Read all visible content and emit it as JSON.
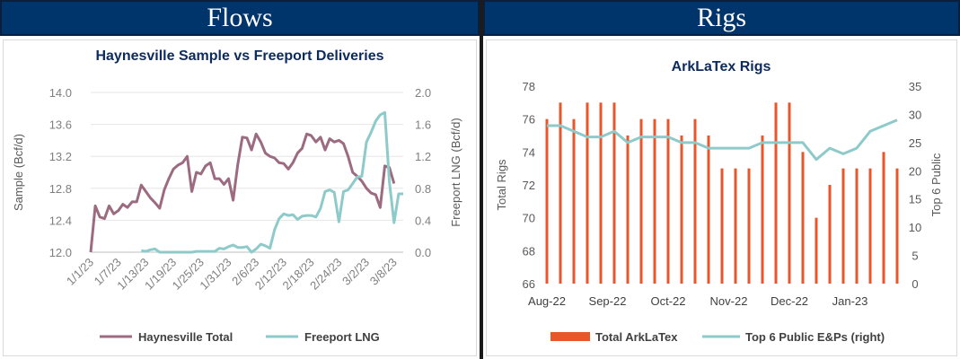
{
  "panels": {
    "left": {
      "header": "Flows"
    },
    "right": {
      "header": "Rigs"
    }
  },
  "colors": {
    "header_bg": "#00356b",
    "haynesville": "#9c6b80",
    "freeport": "#8fcaca",
    "rig_bars": "#e8562a",
    "public_line": "#8fcaca",
    "axis_text": "#7f7f7f",
    "title_text": "#0d2a5c"
  },
  "chart_data": [
    {
      "type": "line",
      "title": "Haynesville Sample vs Freeport Deliveries",
      "ylabel": "Sample (Bcf/d)",
      "y2label": "Freeport LNG (Bcf/d)",
      "ylim": [
        12.0,
        14.0
      ],
      "y2lim": [
        0.0,
        2.0
      ],
      "yticks": [
        "12.0",
        "12.4",
        "12.8",
        "13.2",
        "13.6",
        "14.0"
      ],
      "y2ticks": [
        "0.0",
        "0.4",
        "0.8",
        "1.2",
        "1.6",
        "2.0"
      ],
      "x_tick_labels": [
        "1/1/23",
        "1/7/23",
        "1/13/23",
        "1/19/23",
        "1/25/23",
        "1/31/23",
        "2/6/23",
        "2/12/23",
        "2/18/23",
        "2/24/23",
        "3/2/23",
        "3/8/23"
      ],
      "x_days": [
        1,
        2,
        3,
        4,
        5,
        6,
        7,
        8,
        9,
        10,
        11,
        12,
        13,
        14,
        15,
        16,
        17,
        18,
        19,
        20,
        21,
        22,
        23,
        24,
        25,
        26,
        27,
        28,
        29,
        30,
        31,
        32,
        33,
        34,
        35,
        36,
        37,
        38,
        39,
        40,
        41,
        42,
        43,
        44,
        45,
        46,
        47,
        48,
        49,
        50,
        51,
        52,
        53,
        54,
        55,
        56,
        57,
        58,
        59,
        60,
        61,
        62,
        63,
        64,
        65,
        66,
        67,
        68,
        69
      ],
      "series": [
        {
          "name": "Haynesville Total",
          "axis": "left",
          "values": [
            12.0,
            12.58,
            12.44,
            12.42,
            12.58,
            12.48,
            12.52,
            12.6,
            12.56,
            12.63,
            12.63,
            12.84,
            12.76,
            12.68,
            12.62,
            12.55,
            12.78,
            12.92,
            13.04,
            13.09,
            13.12,
            13.2,
            12.76,
            13.0,
            12.98,
            13.08,
            13.12,
            12.92,
            12.92,
            12.85,
            12.92,
            12.65,
            13.1,
            13.44,
            13.43,
            13.28,
            13.48,
            13.38,
            13.24,
            13.2,
            13.18,
            13.12,
            13.11,
            13.04,
            13.12,
            13.24,
            13.3,
            13.48,
            13.46,
            13.38,
            13.44,
            13.28,
            13.42,
            13.38,
            13.4,
            13.36,
            13.2,
            13.0,
            12.95,
            12.89,
            12.8,
            12.74,
            12.72,
            12.56,
            13.08,
            13.06,
            12.86
          ],
          "x_start_index": 0
        },
        {
          "name": "Freeport LNG",
          "axis": "right",
          "values": [
            0.02,
            0.01,
            0.03,
            0.04,
            0.0,
            0.0,
            0.0,
            0.0,
            0.0,
            0.0,
            0.0,
            0.0,
            0.01,
            0.01,
            0.01,
            0.01,
            0.01,
            0.05,
            0.04,
            0.07,
            0.09,
            0.06,
            0.06,
            0.07,
            0.0,
            0.04,
            0.1,
            0.08,
            0.05,
            0.28,
            0.42,
            0.48,
            0.46,
            0.47,
            0.41,
            0.45,
            0.46,
            0.46,
            0.44,
            0.55,
            0.76,
            0.78,
            0.75,
            0.38,
            0.76,
            0.78,
            0.86,
            0.94,
            0.95,
            1.38,
            1.5,
            1.64,
            1.72,
            1.75,
            0.88,
            0.37,
            0.73,
            0.73
          ],
          "x_start_index": 11
        }
      ]
    },
    {
      "type": "bar+line",
      "title": "ArkLaTex Rigs",
      "ylabel": "Total Rigs",
      "y2label": "Top 6 Public",
      "ylim": [
        66,
        78
      ],
      "y2lim": [
        0,
        35
      ],
      "yticks": [
        "66",
        "68",
        "70",
        "72",
        "74",
        "76",
        "78"
      ],
      "y2ticks": [
        "0",
        "5",
        "10",
        "15",
        "20",
        "25",
        "30",
        "35"
      ],
      "x_tick_labels": [
        "Aug-22",
        "Sep-22",
        "Oct-22",
        "Nov-22",
        "Dec-22",
        "Jan-23"
      ],
      "series": [
        {
          "name": "Total ArkLaTex",
          "type": "bar",
          "axis": "left",
          "values": [
            76,
            77,
            76,
            77,
            77,
            77,
            75,
            76,
            76,
            76,
            75,
            76,
            75,
            73,
            73,
            73,
            75,
            77,
            77,
            74,
            70,
            72,
            73,
            73,
            73,
            74,
            73
          ]
        },
        {
          "name": "Top 6 Public E&Ps (right)",
          "type": "line",
          "axis": "right",
          "values": [
            28,
            28,
            27,
            26,
            26,
            27,
            25,
            26,
            26,
            26,
            25,
            25,
            24,
            24,
            24,
            24,
            25,
            25,
            25,
            25,
            22,
            24,
            23,
            24,
            27,
            28,
            29
          ]
        }
      ]
    }
  ]
}
